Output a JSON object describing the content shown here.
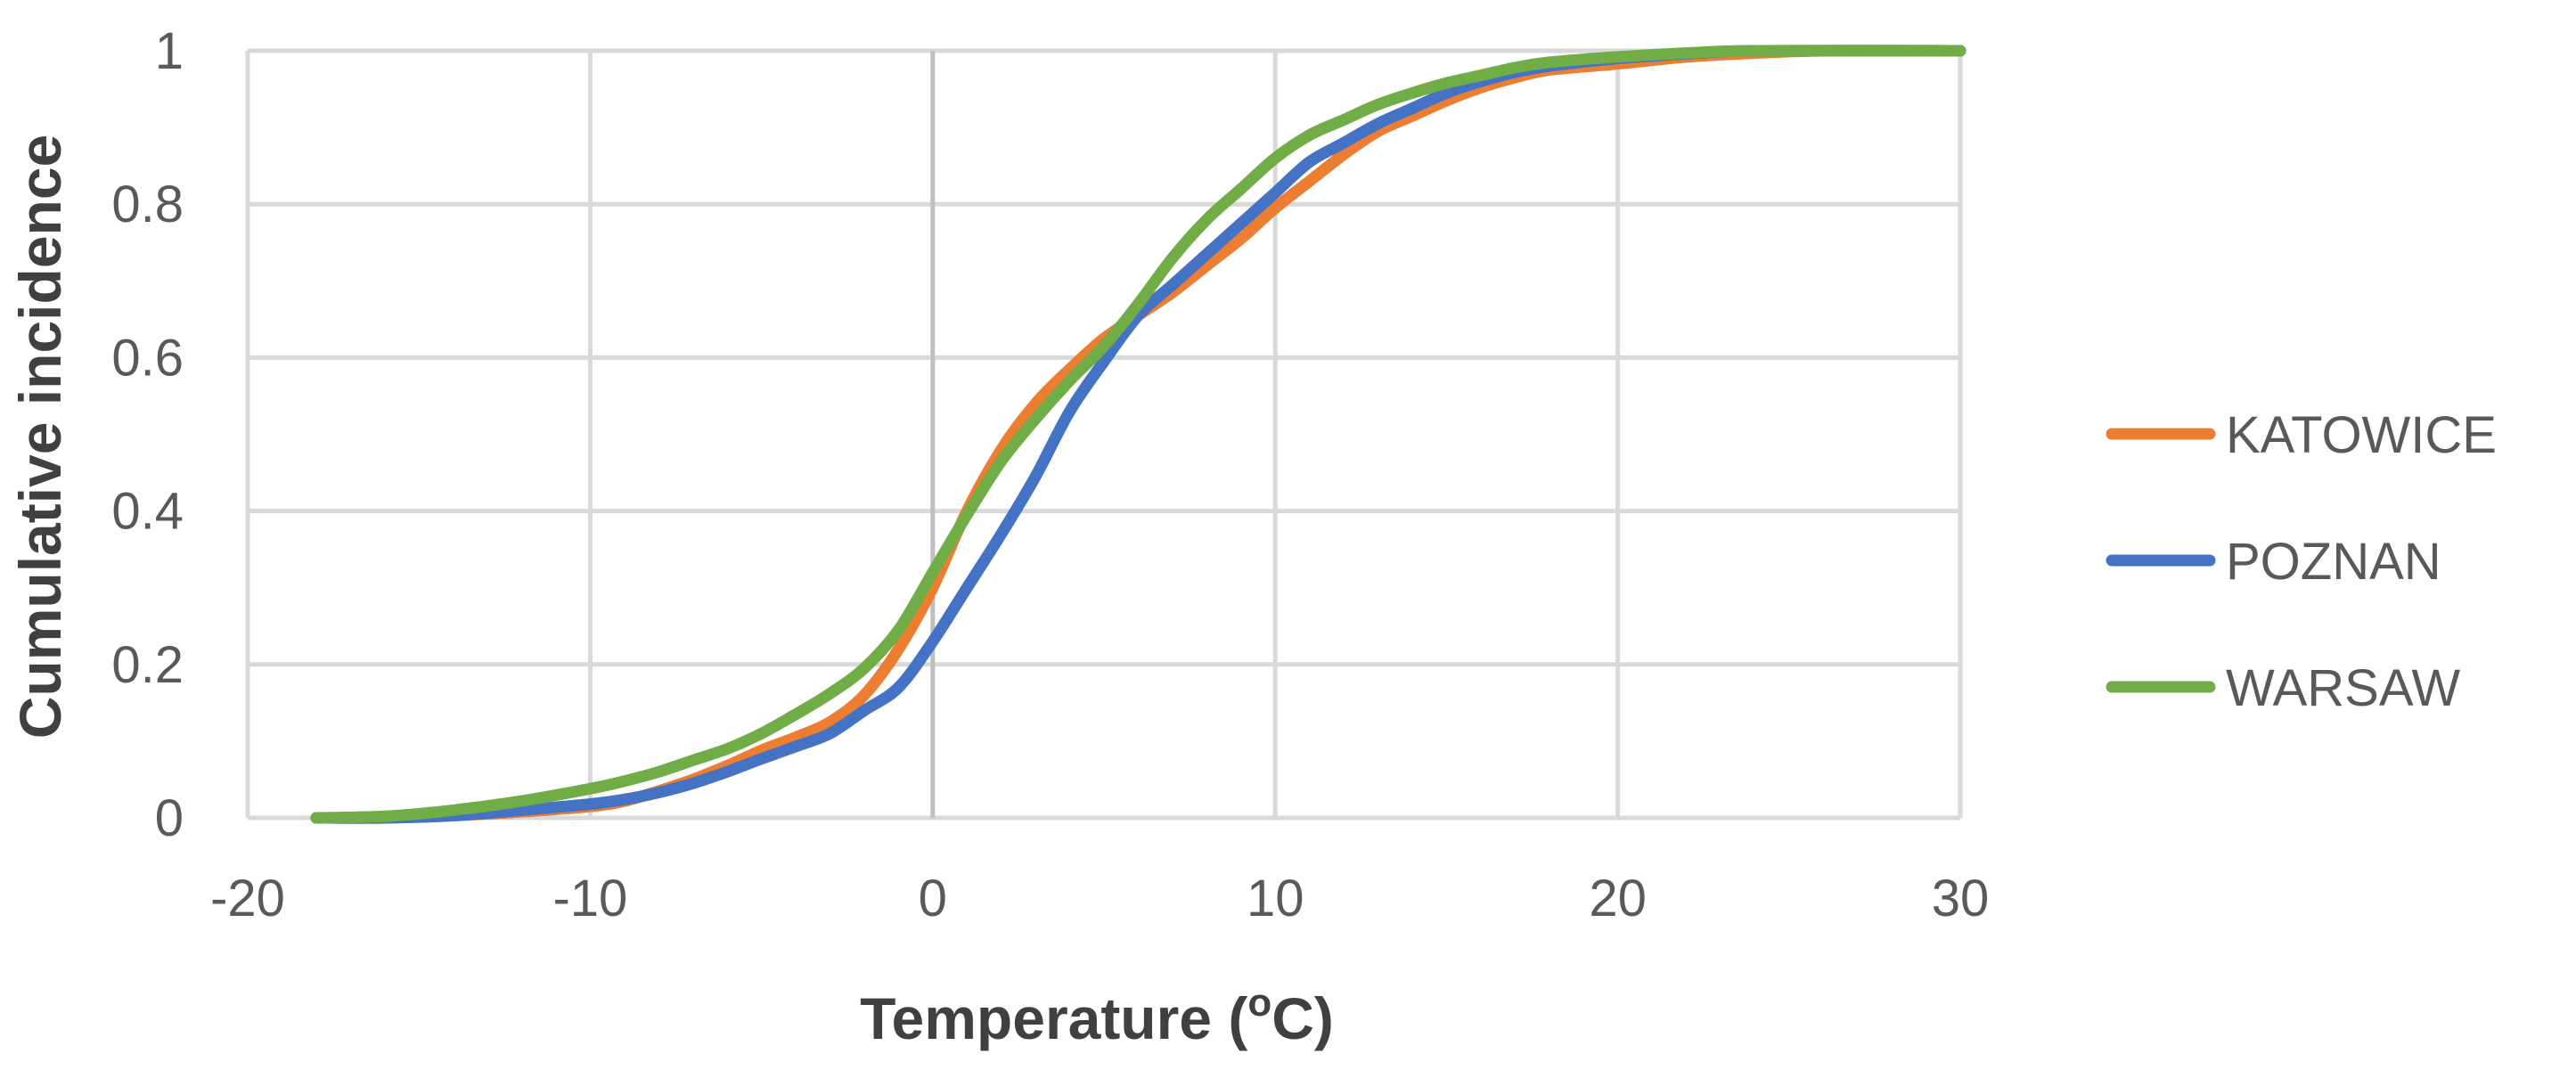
{
  "chart_data": {
    "type": "line",
    "title": "",
    "xlabel": "Temperature (",
    "xlabel_sup": "o",
    "xlabel_unit": "C)",
    "ylabel": "Cumulative incidence",
    "xlim": [
      -20,
      30
    ],
    "ylim": [
      0,
      1
    ],
    "x_ticks": [
      -20,
      -10,
      0,
      10,
      20,
      30
    ],
    "y_ticks": [
      0,
      0.2,
      0.4,
      0.6,
      0.8,
      1
    ],
    "x_tick_labels": [
      "-20",
      "-10",
      "0",
      "10",
      "20",
      "30"
    ],
    "y_tick_labels": [
      "0",
      "0.2",
      "0.4",
      "0.6",
      "0.8",
      "1"
    ],
    "grid": true,
    "legend_position": "right",
    "series": [
      {
        "name": "KATOWICE",
        "color": "#ED7D31",
        "points": [
          [
            -18,
            0
          ],
          [
            -16,
            0
          ],
          [
            -14,
            0.003
          ],
          [
            -12,
            0.008
          ],
          [
            -10,
            0.015
          ],
          [
            -9,
            0.022
          ],
          [
            -8,
            0.035
          ],
          [
            -7,
            0.05
          ],
          [
            -6,
            0.068
          ],
          [
            -5,
            0.088
          ],
          [
            -4,
            0.105
          ],
          [
            -3,
            0.125
          ],
          [
            -2,
            0.16
          ],
          [
            -1,
            0.22
          ],
          [
            0,
            0.3
          ],
          [
            1,
            0.4
          ],
          [
            2,
            0.48
          ],
          [
            3,
            0.54
          ],
          [
            4,
            0.585
          ],
          [
            5,
            0.625
          ],
          [
            6,
            0.655
          ],
          [
            7,
            0.685
          ],
          [
            8,
            0.72
          ],
          [
            9,
            0.755
          ],
          [
            10,
            0.795
          ],
          [
            11,
            0.83
          ],
          [
            12,
            0.865
          ],
          [
            13,
            0.895
          ],
          [
            14,
            0.915
          ],
          [
            15,
            0.935
          ],
          [
            16,
            0.952
          ],
          [
            17,
            0.965
          ],
          [
            18,
            0.975
          ],
          [
            20,
            0.983
          ],
          [
            22,
            0.992
          ],
          [
            24,
            0.997
          ],
          [
            26,
            1
          ],
          [
            30,
            1
          ]
        ]
      },
      {
        "name": "POZNAN",
        "color": "#4472C4",
        "points": [
          [
            -18,
            0
          ],
          [
            -16,
            0
          ],
          [
            -14,
            0.003
          ],
          [
            -12,
            0.01
          ],
          [
            -10,
            0.018
          ],
          [
            -9,
            0.024
          ],
          [
            -8,
            0.033
          ],
          [
            -7,
            0.045
          ],
          [
            -6,
            0.06
          ],
          [
            -5,
            0.077
          ],
          [
            -4,
            0.093
          ],
          [
            -3,
            0.11
          ],
          [
            -2,
            0.14
          ],
          [
            -1,
            0.17
          ],
          [
            0,
            0.23
          ],
          [
            1,
            0.3
          ],
          [
            2,
            0.37
          ],
          [
            3,
            0.445
          ],
          [
            4,
            0.53
          ],
          [
            5,
            0.595
          ],
          [
            6,
            0.655
          ],
          [
            7,
            0.695
          ],
          [
            8,
            0.735
          ],
          [
            9,
            0.775
          ],
          [
            10,
            0.815
          ],
          [
            11,
            0.855
          ],
          [
            12,
            0.88
          ],
          [
            13,
            0.905
          ],
          [
            14,
            0.925
          ],
          [
            15,
            0.945
          ],
          [
            16,
            0.96
          ],
          [
            17,
            0.972
          ],
          [
            18,
            0.98
          ],
          [
            20,
            0.99
          ],
          [
            22,
            0.996
          ],
          [
            24,
            1
          ],
          [
            30,
            1
          ]
        ]
      },
      {
        "name": "WARSAW",
        "color": "#70AD47",
        "points": [
          [
            -18,
            0
          ],
          [
            -16,
            0.002
          ],
          [
            -14,
            0.01
          ],
          [
            -12,
            0.022
          ],
          [
            -10,
            0.038
          ],
          [
            -9,
            0.048
          ],
          [
            -8,
            0.06
          ],
          [
            -7,
            0.075
          ],
          [
            -6,
            0.09
          ],
          [
            -5,
            0.11
          ],
          [
            -4,
            0.135
          ],
          [
            -3,
            0.162
          ],
          [
            -2,
            0.195
          ],
          [
            -1,
            0.245
          ],
          [
            0,
            0.32
          ],
          [
            1,
            0.395
          ],
          [
            2,
            0.465
          ],
          [
            3,
            0.52
          ],
          [
            4,
            0.57
          ],
          [
            5,
            0.615
          ],
          [
            6,
            0.67
          ],
          [
            7,
            0.73
          ],
          [
            8,
            0.78
          ],
          [
            9,
            0.82
          ],
          [
            10,
            0.86
          ],
          [
            11,
            0.89
          ],
          [
            12,
            0.91
          ],
          [
            13,
            0.93
          ],
          [
            14,
            0.945
          ],
          [
            15,
            0.958
          ],
          [
            16,
            0.968
          ],
          [
            17,
            0.978
          ],
          [
            18,
            0.985
          ],
          [
            20,
            0.992
          ],
          [
            22,
            0.997
          ],
          [
            24,
            1
          ],
          [
            30,
            1
          ]
        ]
      }
    ]
  }
}
